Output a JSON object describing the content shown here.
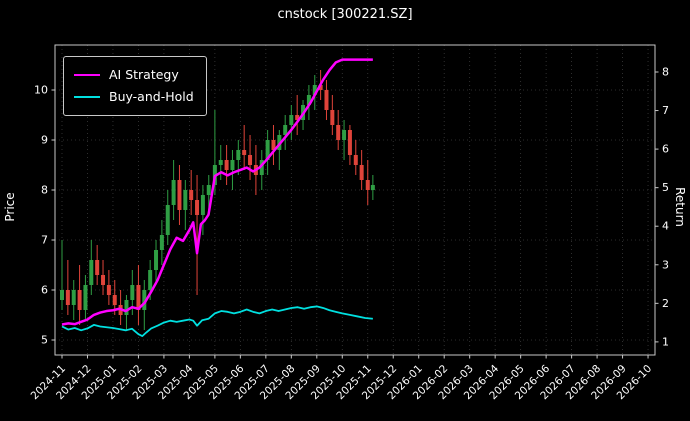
{
  "window": {
    "title": "cnstock [300221.SZ]"
  },
  "chart_data": {
    "type": "line",
    "title": "cnstock [300221.SZ]",
    "subtitle": "",
    "ylabel_left": "Price",
    "ylabel_right": "Return",
    "x_unit": "months from 2024-11",
    "x_ticks": [
      "2024-11",
      "2024-12",
      "2025-01",
      "2025-02",
      "2025-03",
      "2025-04",
      "2025-05",
      "2025-06",
      "2025-07",
      "2025-08",
      "2025-09",
      "2025-10",
      "2025-11",
      "2025-12",
      "2026-01",
      "2026-02",
      "2026-03",
      "2026-04",
      "2026-05",
      "2026-06",
      "2026-07",
      "2026-08",
      "2026-09",
      "2026-10"
    ],
    "price_ticks": [
      5,
      6,
      7,
      8,
      9,
      10
    ],
    "return_ticks": [
      1,
      2,
      3,
      4,
      5,
      6,
      7,
      8
    ],
    "price_range": [
      4.7,
      10.9
    ],
    "return_range": [
      0.66,
      8.7
    ],
    "grid": true,
    "legend_position": "upper-left",
    "colors": {
      "background": "#000000",
      "text": "#ffffff",
      "spine": "#c8c8c8",
      "grid": "#3a3a3a",
      "candle_up": "#2f9e44",
      "candle_down": "#e0443a",
      "ai_strategy": "#ff00ff",
      "buy_and_hold": "#00e0e0"
    },
    "series": [
      {
        "name": "AI Strategy",
        "axis": "return",
        "color": "#ff00ff",
        "points": [
          [
            0,
            1.45
          ],
          [
            0.25,
            1.48
          ],
          [
            0.5,
            1.46
          ],
          [
            0.75,
            1.52
          ],
          [
            1,
            1.58
          ],
          [
            1.25,
            1.7
          ],
          [
            1.5,
            1.76
          ],
          [
            1.75,
            1.8
          ],
          [
            2,
            1.82
          ],
          [
            2.25,
            1.86
          ],
          [
            2.5,
            1.8
          ],
          [
            2.75,
            1.9
          ],
          [
            3,
            1.86
          ],
          [
            3.25,
            2.02
          ],
          [
            3.5,
            2.3
          ],
          [
            3.75,
            2.6
          ],
          [
            4,
            3.0
          ],
          [
            4.25,
            3.4
          ],
          [
            4.5,
            3.7
          ],
          [
            4.75,
            3.62
          ],
          [
            5,
            3.9
          ],
          [
            5.15,
            4.1
          ],
          [
            5.3,
            3.3
          ],
          [
            5.45,
            4.05
          ],
          [
            5.6,
            4.15
          ],
          [
            5.75,
            4.3
          ],
          [
            6,
            5.3
          ],
          [
            6.25,
            5.4
          ],
          [
            6.5,
            5.32
          ],
          [
            6.75,
            5.4
          ],
          [
            7,
            5.46
          ],
          [
            7.25,
            5.52
          ],
          [
            7.5,
            5.42
          ],
          [
            7.75,
            5.52
          ],
          [
            8,
            5.7
          ],
          [
            8.25,
            5.9
          ],
          [
            8.5,
            6.1
          ],
          [
            8.75,
            6.3
          ],
          [
            9,
            6.5
          ],
          [
            9.25,
            6.72
          ],
          [
            9.5,
            6.95
          ],
          [
            9.75,
            7.2
          ],
          [
            10,
            7.5
          ],
          [
            10.25,
            7.8
          ],
          [
            10.5,
            8.05
          ],
          [
            10.75,
            8.25
          ],
          [
            11,
            8.32
          ],
          [
            11.3,
            8.32
          ],
          [
            11.6,
            8.32
          ],
          [
            11.9,
            8.32
          ],
          [
            12.2,
            8.32
          ]
        ]
      },
      {
        "name": "Buy-and-Hold",
        "axis": "return",
        "color": "#00e0e0",
        "points": [
          [
            0,
            1.4
          ],
          [
            0.25,
            1.32
          ],
          [
            0.5,
            1.36
          ],
          [
            0.75,
            1.3
          ],
          [
            1,
            1.35
          ],
          [
            1.25,
            1.44
          ],
          [
            1.5,
            1.4
          ],
          [
            1.75,
            1.38
          ],
          [
            2,
            1.36
          ],
          [
            2.25,
            1.33
          ],
          [
            2.5,
            1.3
          ],
          [
            2.75,
            1.34
          ],
          [
            3,
            1.2
          ],
          [
            3.15,
            1.15
          ],
          [
            3.3,
            1.24
          ],
          [
            3.5,
            1.35
          ],
          [
            3.75,
            1.42
          ],
          [
            4,
            1.5
          ],
          [
            4.25,
            1.55
          ],
          [
            4.5,
            1.52
          ],
          [
            4.75,
            1.55
          ],
          [
            5,
            1.58
          ],
          [
            5.15,
            1.55
          ],
          [
            5.3,
            1.42
          ],
          [
            5.5,
            1.56
          ],
          [
            5.75,
            1.6
          ],
          [
            6,
            1.74
          ],
          [
            6.25,
            1.8
          ],
          [
            6.5,
            1.78
          ],
          [
            6.75,
            1.74
          ],
          [
            7,
            1.78
          ],
          [
            7.25,
            1.84
          ],
          [
            7.5,
            1.78
          ],
          [
            7.75,
            1.74
          ],
          [
            8,
            1.8
          ],
          [
            8.25,
            1.84
          ],
          [
            8.5,
            1.8
          ],
          [
            8.75,
            1.84
          ],
          [
            9,
            1.88
          ],
          [
            9.25,
            1.9
          ],
          [
            9.5,
            1.86
          ],
          [
            9.75,
            1.9
          ],
          [
            10,
            1.92
          ],
          [
            10.25,
            1.88
          ],
          [
            10.5,
            1.82
          ],
          [
            10.75,
            1.78
          ],
          [
            11,
            1.74
          ],
          [
            11.3,
            1.7
          ],
          [
            11.6,
            1.66
          ],
          [
            11.9,
            1.62
          ],
          [
            12.2,
            1.6
          ]
        ]
      }
    ],
    "candles_format": [
      "t_months",
      "open",
      "high",
      "low",
      "close"
    ],
    "candles": [
      [
        0.0,
        5.8,
        7.0,
        5.6,
        6.0
      ],
      [
        0.23,
        6.0,
        6.6,
        5.5,
        5.7
      ],
      [
        0.46,
        5.7,
        6.2,
        5.4,
        6.0
      ],
      [
        0.69,
        6.0,
        6.5,
        5.3,
        5.6
      ],
      [
        0.92,
        5.6,
        6.3,
        5.4,
        6.1
      ],
      [
        1.15,
        6.1,
        7.0,
        5.9,
        6.6
      ],
      [
        1.38,
        6.6,
        6.9,
        6.1,
        6.3
      ],
      [
        1.61,
        6.3,
        6.6,
        5.9,
        6.1
      ],
      [
        1.84,
        6.1,
        6.4,
        5.7,
        5.9
      ],
      [
        2.07,
        5.9,
        6.2,
        5.5,
        5.7
      ],
      [
        2.3,
        5.7,
        6.0,
        5.3,
        5.5
      ],
      [
        2.53,
        5.5,
        5.9,
        5.2,
        5.8
      ],
      [
        2.76,
        5.8,
        6.4,
        5.5,
        6.1
      ],
      [
        3.0,
        6.1,
        6.5,
        5.3,
        5.6
      ],
      [
        3.23,
        5.6,
        6.2,
        5.2,
        6.0
      ],
      [
        3.46,
        6.0,
        6.6,
        5.8,
        6.4
      ],
      [
        3.69,
        6.4,
        7.0,
        6.1,
        6.8
      ],
      [
        3.92,
        6.8,
        7.4,
        6.5,
        7.1
      ],
      [
        4.15,
        7.1,
        8.0,
        6.9,
        7.7
      ],
      [
        4.38,
        7.7,
        8.6,
        7.4,
        8.2
      ],
      [
        4.61,
        8.2,
        8.5,
        7.3,
        7.6
      ],
      [
        4.84,
        7.6,
        8.2,
        7.2,
        8.0
      ],
      [
        5.07,
        8.0,
        8.4,
        7.5,
        7.8
      ],
      [
        5.3,
        7.8,
        8.3,
        5.9,
        7.5
      ],
      [
        5.53,
        7.5,
        8.1,
        7.1,
        7.9
      ],
      [
        5.76,
        7.9,
        8.3,
        7.6,
        8.1
      ],
      [
        6.0,
        8.1,
        9.6,
        7.9,
        8.5
      ],
      [
        6.23,
        8.5,
        8.9,
        8.2,
        8.6
      ],
      [
        6.46,
        8.6,
        8.9,
        8.1,
        8.4
      ],
      [
        6.69,
        8.4,
        8.8,
        8.0,
        8.6
      ],
      [
        6.92,
        8.6,
        9.0,
        8.3,
        8.8
      ],
      [
        7.15,
        8.8,
        9.3,
        8.4,
        8.7
      ],
      [
        7.38,
        8.7,
        9.1,
        8.2,
        8.5
      ],
      [
        7.61,
        8.5,
        8.9,
        7.9,
        8.3
      ],
      [
        7.84,
        8.3,
        8.8,
        8.0,
        8.6
      ],
      [
        8.07,
        8.6,
        9.2,
        8.3,
        9.0
      ],
      [
        8.3,
        9.0,
        9.3,
        8.5,
        8.8
      ],
      [
        8.53,
        8.8,
        9.2,
        8.4,
        9.1
      ],
      [
        8.76,
        9.1,
        9.5,
        8.8,
        9.3
      ],
      [
        9.0,
        9.3,
        9.7,
        9.0,
        9.5
      ],
      [
        9.23,
        9.5,
        9.9,
        9.1,
        9.4
      ],
      [
        9.46,
        9.4,
        9.8,
        9.2,
        9.7
      ],
      [
        9.69,
        9.7,
        10.1,
        9.4,
        9.9
      ],
      [
        9.92,
        9.9,
        10.3,
        9.6,
        10.1
      ],
      [
        10.15,
        10.1,
        10.4,
        9.8,
        10.0
      ],
      [
        10.38,
        10.0,
        10.2,
        9.4,
        9.6
      ],
      [
        10.61,
        9.6,
        9.9,
        9.1,
        9.3
      ],
      [
        10.84,
        9.3,
        9.6,
        8.8,
        9.0
      ],
      [
        11.07,
        9.0,
        9.4,
        8.6,
        9.2
      ],
      [
        11.3,
        9.2,
        9.3,
        8.5,
        8.7
      ],
      [
        11.53,
        8.7,
        9.0,
        8.3,
        8.5
      ],
      [
        11.76,
        8.5,
        8.8,
        8.0,
        8.2
      ],
      [
        12.0,
        8.2,
        8.6,
        7.7,
        8.0
      ],
      [
        12.2,
        8.0,
        8.3,
        7.8,
        8.1
      ]
    ]
  }
}
